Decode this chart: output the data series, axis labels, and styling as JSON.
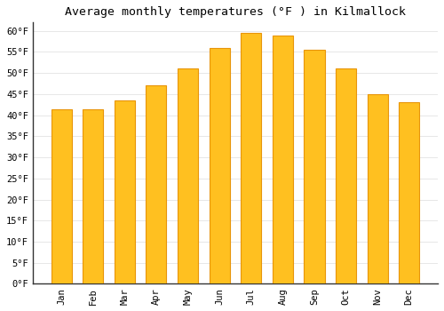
{
  "title": "Average monthly temperatures (°F ) in Kilmallock",
  "months": [
    "Jan",
    "Feb",
    "Mar",
    "Apr",
    "May",
    "Jun",
    "Jul",
    "Aug",
    "Sep",
    "Oct",
    "Nov",
    "Dec"
  ],
  "values": [
    41.5,
    41.5,
    43.5,
    47,
    51,
    56,
    59.5,
    59,
    55.5,
    51,
    45,
    43
  ],
  "bar_color": "#FFC020",
  "bar_edge_color": "#E8950A",
  "ylim": [
    0,
    62
  ],
  "yticks": [
    0,
    5,
    10,
    15,
    20,
    25,
    30,
    35,
    40,
    45,
    50,
    55,
    60
  ],
  "background_color": "#FFFFFF",
  "grid_color": "#DDDDDD",
  "title_fontsize": 9.5,
  "tick_fontsize": 7.5
}
